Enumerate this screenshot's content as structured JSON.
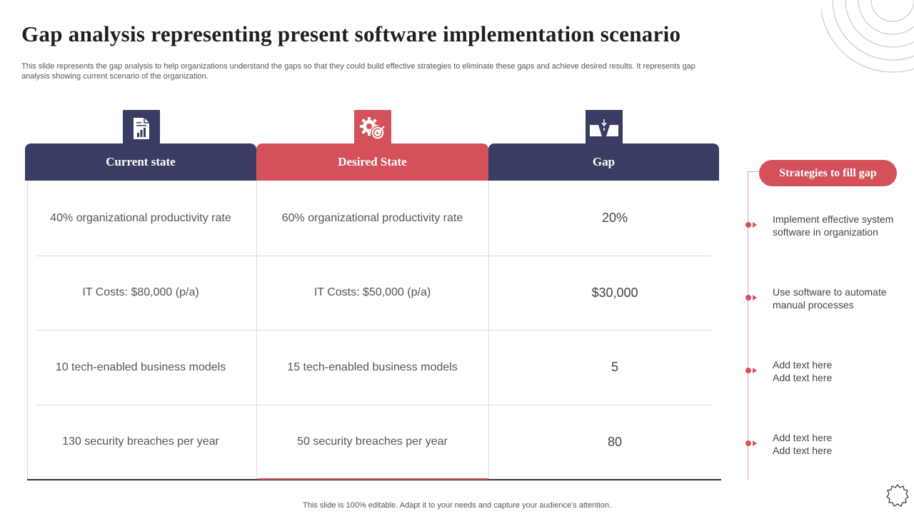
{
  "title": "Gap analysis representing present software implementation scenario",
  "subtitle": "This slide represents the gap analysis to help organizations understand the gaps so that they could build effective strategies to eliminate these gaps and achieve desired results. It represents gap analysis showing current scenario of the organization.",
  "columns": [
    {
      "label": "Current state",
      "icon": "document-chart-icon"
    },
    {
      "label": "Desired State",
      "icon": "gear-target-icon"
    },
    {
      "label": "Gap",
      "icon": "bridge-gap-icon"
    }
  ],
  "rows": [
    {
      "current": "40% organizational productivity rate",
      "desired": "60% organizational productivity rate",
      "gap": "20%"
    },
    {
      "current": "IT  Costs: $80,000 (p/a)",
      "desired": "IT  Costs: $50,000 (p/a)",
      "gap": "$30,000"
    },
    {
      "current": "10 tech-enabled business models",
      "desired": "15 tech-enabled business models",
      "gap": "5"
    },
    {
      "current": "130 security breaches per year",
      "desired": "50 security breaches per year",
      "gap": "80"
    }
  ],
  "strategies": {
    "title": "Strategies to fill gap",
    "items": [
      {
        "line1": "Implement effective system",
        "line2": "software in organization"
      },
      {
        "line1": "Use software to automate",
        "line2": "manual processes"
      },
      {
        "line1": "Add text here",
        "line2": "Add text here"
      },
      {
        "line1": "Add text here",
        "line2": "Add text here"
      }
    ]
  },
  "footer": "This slide is 100% editable. Adapt it to your needs and capture your audience's attention.",
  "colors": {
    "navy": "#3a3d63",
    "red": "#d4515b"
  }
}
